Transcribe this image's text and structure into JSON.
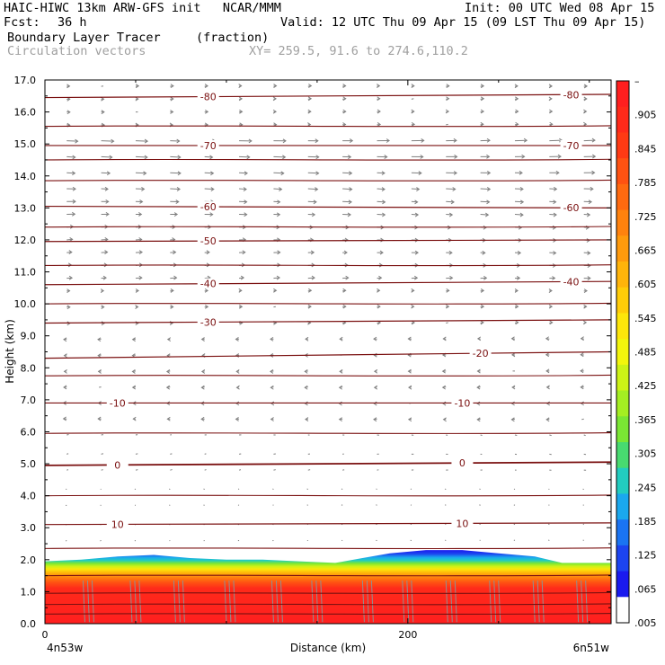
{
  "header": {
    "model_line": "HAIC-HIWC 13km ARW-GFS init   NCAR/MMM",
    "init": "Init: 00 UTC Wed 08 Apr 15",
    "fcst_label": "Fcst:",
    "fcst_value": "36 h",
    "valid": "Valid: 12 UTC Thu 09 Apr 15 (09 LST Thu 09 Apr 15)",
    "field_name": "Boundary Layer Tracer",
    "field_units": "(fraction)",
    "overlay_name": "Circulation vectors",
    "xy": "XY= 259.5, 91.6 to 274.6,110.2"
  },
  "chart_data": {
    "type": "heatmap",
    "title": "Boundary Layer Tracer",
    "units": "(fraction)",
    "xlabel": "Distance (km)",
    "ylabel": "Height (km)",
    "xlim": [
      0,
      312
    ],
    "ylim": [
      0,
      17
    ],
    "x_ticks": [
      {
        "value": 0,
        "label": "0"
      },
      {
        "value": 200,
        "label": "200"
      }
    ],
    "x_end_labels": {
      "left": "4n53w",
      "right": "6n51w"
    },
    "y_ticks": [
      {
        "value": 0,
        "label": "0.0"
      },
      {
        "value": 1,
        "label": "1.0"
      },
      {
        "value": 2,
        "label": "2.0"
      },
      {
        "value": 3,
        "label": "3.0"
      },
      {
        "value": 4,
        "label": "4.0"
      },
      {
        "value": 5,
        "label": "5.0"
      },
      {
        "value": 6,
        "label": "6.0"
      },
      {
        "value": 7,
        "label": "7.0"
      },
      {
        "value": 8,
        "label": "8.0"
      },
      {
        "value": 9,
        "label": "9.0"
      },
      {
        "value": 10,
        "label": "10.0"
      },
      {
        "value": 11,
        "label": "11.0"
      },
      {
        "value": 12,
        "label": "12.0"
      },
      {
        "value": 13,
        "label": "13.0"
      },
      {
        "value": 14,
        "label": "14.0"
      },
      {
        "value": 15,
        "label": "15.0"
      },
      {
        "value": 16,
        "label": "16.0"
      },
      {
        "value": 17,
        "label": "17.0"
      }
    ],
    "colorbar": {
      "labels": [
        "–",
        ".905",
        ".845",
        ".785",
        ".725",
        ".665",
        ".605",
        ".545",
        ".485",
        ".425",
        ".365",
        ".305",
        ".245",
        ".185",
        ".125",
        ".065",
        ".005"
      ],
      "colors": [
        "#ff1f1f",
        "#ff2a1a",
        "#ff3a14",
        "#ff5212",
        "#ff6a10",
        "#ff820e",
        "#ff9a0c",
        "#ffb40a",
        "#ffcc08",
        "#fde60a",
        "#f2f50c",
        "#ccf216",
        "#a4ee22",
        "#7ae634",
        "#48da70",
        "#22ccc0",
        "#1aa8ee",
        "#1a74f2",
        "#1c44f0",
        "#1a1aee",
        "#ffffff"
      ]
    },
    "bl_top_km": [
      {
        "x": 0,
        "z": 1.95
      },
      {
        "x": 20,
        "z": 2.0
      },
      {
        "x": 40,
        "z": 2.1
      },
      {
        "x": 60,
        "z": 2.15
      },
      {
        "x": 80,
        "z": 2.05
      },
      {
        "x": 100,
        "z": 2.0
      },
      {
        "x": 120,
        "z": 2.0
      },
      {
        "x": 140,
        "z": 1.95
      },
      {
        "x": 160,
        "z": 1.9
      },
      {
        "x": 175,
        "z": 2.05
      },
      {
        "x": 190,
        "z": 2.2
      },
      {
        "x": 210,
        "z": 2.3
      },
      {
        "x": 230,
        "z": 2.3
      },
      {
        "x": 250,
        "z": 2.2
      },
      {
        "x": 270,
        "z": 2.1
      },
      {
        "x": 285,
        "z": 1.9
      },
      {
        "x": 312,
        "z": 1.9
      }
    ],
    "temperature_contours": [
      {
        "label": "-80",
        "z_left": 16.45,
        "z_right": 16.55,
        "label_x": [
          90,
          290
        ]
      },
      {
        "label": "-70",
        "z_left": 14.95,
        "z_right": 14.95,
        "label_x": [
          90,
          290
        ]
      },
      {
        "label": "-60",
        "z_left": 13.05,
        "z_right": 13.0,
        "label_x": [
          90,
          290
        ]
      },
      {
        "label": "-50",
        "z_left": 11.95,
        "z_right": 12.0,
        "label_x": [
          90
        ]
      },
      {
        "label": "-40",
        "z_left": 10.6,
        "z_right": 10.7,
        "label_x": [
          90,
          290
        ]
      },
      {
        "label": "-30",
        "z_left": 9.4,
        "z_right": 9.5,
        "label_x": [
          90
        ]
      },
      {
        "label": "-20",
        "z_left": 8.3,
        "z_right": 8.5,
        "label_x": [
          240
        ]
      },
      {
        "label": "-10",
        "z_left": 6.9,
        "z_right": 6.9,
        "label_x": [
          40,
          230
        ]
      },
      {
        "label": "0",
        "z_left": 4.95,
        "z_right": 5.05,
        "label_x": [
          40,
          230
        ]
      },
      {
        "label": "10",
        "z_left": 3.1,
        "z_right": 3.15,
        "label_x": [
          40,
          230
        ]
      }
    ],
    "unlabeled_contour_levels_km": [
      15.55,
      14.5,
      13.85,
      12.4,
      11.2,
      10.0,
      7.75,
      5.95,
      4.0,
      2.35,
      1.5,
      0.95,
      0.6,
      0.3
    ]
  }
}
